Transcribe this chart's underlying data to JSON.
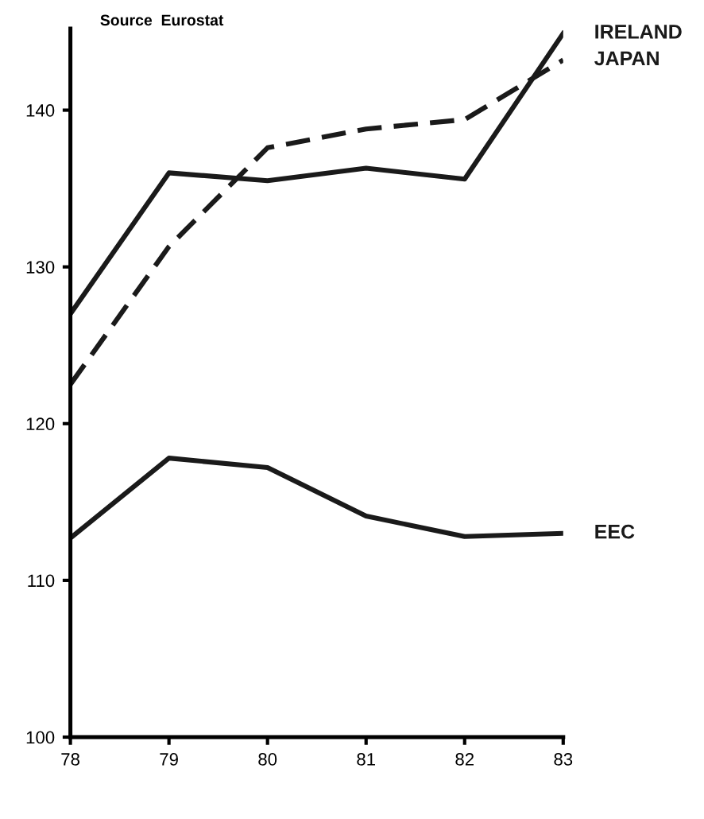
{
  "chart_data": {
    "type": "line",
    "x": [
      78,
      79,
      80,
      81,
      82,
      83
    ],
    "series": [
      {
        "name": "IRELAND",
        "color": "#1a1a1a",
        "line_style": "solid",
        "values": [
          127.0,
          136.0,
          135.5,
          136.3,
          135.6,
          144.9
        ]
      },
      {
        "name": "JAPAN",
        "color": "#1a1a1a",
        "line_style": "dashed",
        "values": [
          122.5,
          131.3,
          137.6,
          138.8,
          139.4,
          143.2
        ]
      },
      {
        "name": "EEC",
        "color": "#1a1a1a",
        "line_style": "solid",
        "values": [
          112.7,
          117.8,
          117.2,
          114.1,
          112.8,
          113.0
        ]
      }
    ],
    "xlim": [
      78,
      83
    ],
    "xticks": [
      78,
      79,
      80,
      81,
      82,
      83
    ],
    "ylim": [
      100,
      145.2
    ],
    "yticks": [
      100,
      110,
      120,
      130,
      140
    ],
    "annotations": [
      "Source  Eurostat"
    ],
    "grid": false,
    "legend": false,
    "marker": "none"
  }
}
